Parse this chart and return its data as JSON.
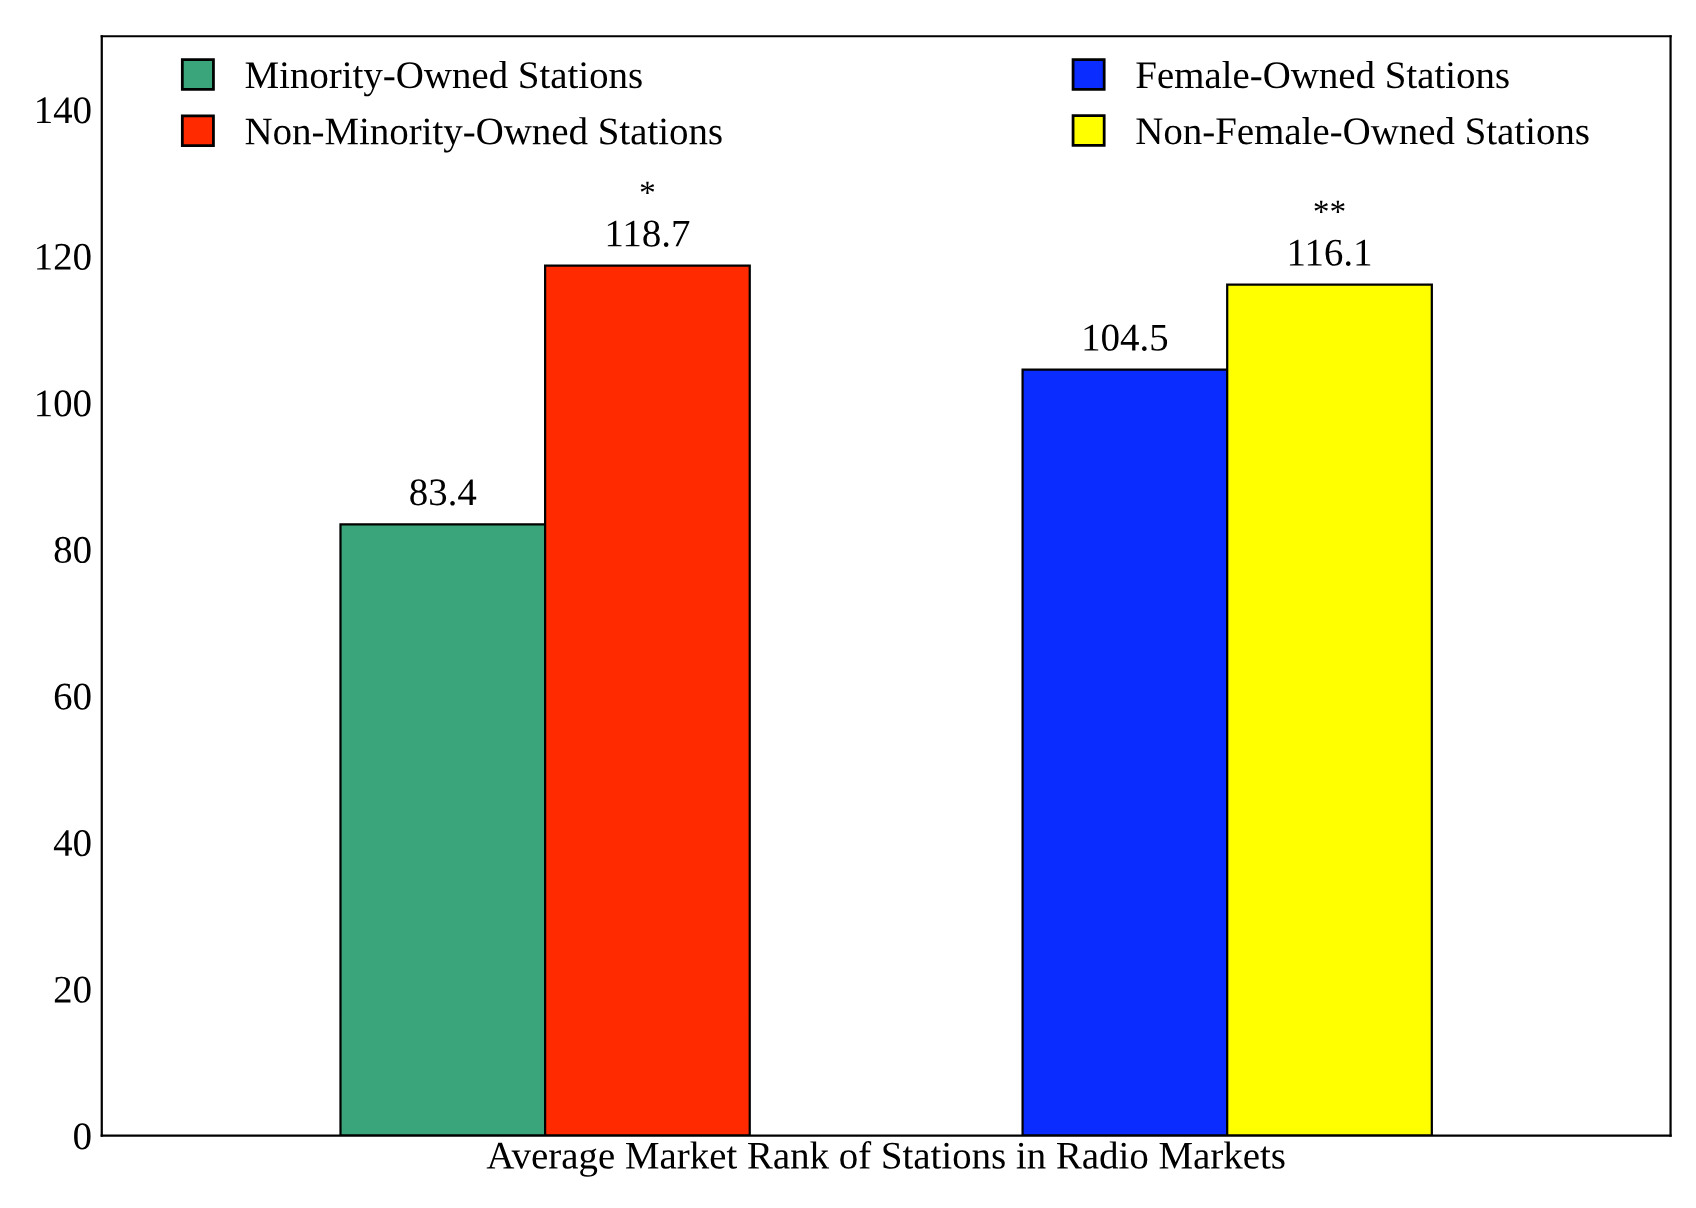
{
  "chart_data": {
    "type": "bar",
    "xlabel": "Average Market Rank of Stations in Radio Markets",
    "categories": [
      null,
      null
    ],
    "series": [
      {
        "name": "Minority-Owned Stations",
        "color": "#3aa57a",
        "values": [
          83.4,
          null
        ]
      },
      {
        "name": "Non-Minority-Owned Stations",
        "color": "#ff2a00",
        "values": [
          118.7,
          null
        ]
      },
      {
        "name": "Female-Owned Stations",
        "color": "#0a2cff",
        "values": [
          null,
          104.5
        ]
      },
      {
        "name": "Non-Female-Owned Stations",
        "color": "#ffff00",
        "values": [
          null,
          116.1
        ]
      }
    ],
    "ylim": [
      0,
      150
    ],
    "yticks": [
      0,
      20,
      40,
      60,
      80,
      100,
      120,
      140
    ],
    "data_labels": true,
    "legend": "top",
    "grid": false,
    "tick_labels": "y",
    "annotations": [
      {
        "text": "*",
        "y": 118.7
      },
      {
        "text": "**",
        "y": 116.1
      }
    ]
  }
}
